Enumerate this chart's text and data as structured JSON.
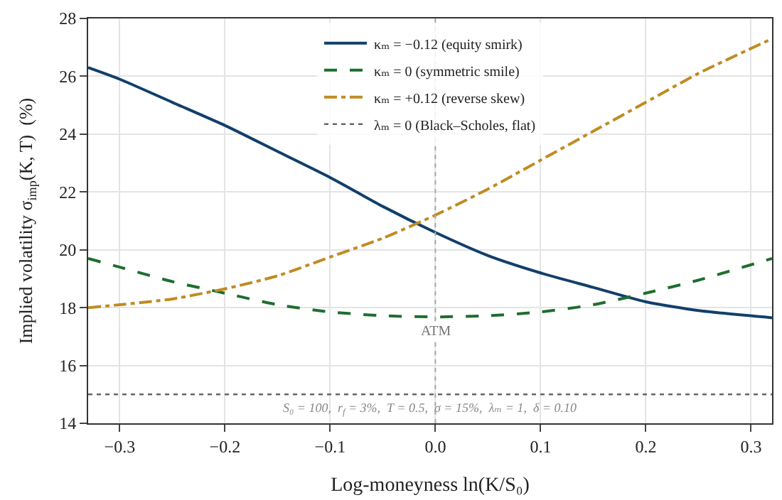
{
  "chart_data": {
    "type": "line",
    "xlabel": "Log-moneyness ln(K/S₀)",
    "ylabel": "Implied volatility σ$_{imp}$(K, T)  (%)",
    "xlim": [
      -0.33,
      0.32
    ],
    "xticks": [
      -0.3,
      -0.2,
      -0.1,
      {
        "value": 0,
        "label": "0.0"
      },
      0.1,
      0.2,
      0.3
    ],
    "ylim": [
      14,
      28
    ],
    "yticks": [
      14,
      16,
      18,
      20,
      22,
      24,
      26,
      28
    ],
    "grid": true,
    "legend": "top",
    "marker": "none",
    "x": [
      -0.33,
      -0.3,
      -0.25,
      -0.2,
      -0.15,
      -0.1,
      -0.05,
      0,
      0.05,
      0.1,
      0.15,
      0.2,
      0.25,
      0.32
    ],
    "series": [
      {
        "name": "κₘ = −0.12 (equity smirk)",
        "color": "#123f6b",
        "line_style": "solid",
        "values": [
          26.3,
          25.9,
          25.1,
          24.3,
          23.4,
          22.5,
          21.5,
          20.6,
          19.8,
          19.2,
          18.7,
          18.2,
          17.9,
          17.65
        ]
      },
      {
        "name": "κₘ = 0 (symmetric smile)",
        "color": "#1e6e2e",
        "line_style": "dashed",
        "values": [
          19.7,
          19.4,
          18.9,
          18.5,
          18.1,
          17.85,
          17.72,
          17.68,
          17.72,
          17.85,
          18.1,
          18.5,
          18.95,
          19.7
        ]
      },
      {
        "name": "κₘ = +0.12 (reverse skew)",
        "color": "#c08b22",
        "line_style": "dashdot",
        "values": [
          18.0,
          18.1,
          18.3,
          18.65,
          19.1,
          19.75,
          20.4,
          21.2,
          22.1,
          23.1,
          24.1,
          25.1,
          26.1,
          27.3
        ]
      },
      {
        "name": "λₘ = 0 (Black–Scholes, flat)",
        "color": "#666666",
        "line_style": "dotted",
        "x": [
          -0.33,
          0.32
        ],
        "values": [
          15,
          15
        ]
      }
    ],
    "ref_lines": [
      {
        "axis": "x",
        "value": 0,
        "label": "ATM",
        "color": "#aaaaaa",
        "line_style": "dotted"
      }
    ],
    "annotations": [
      "S₀ = 100,  r$_{f}$ = 3%,  T = 0.5,  σ = 15%,  λₘ = 1,  δ = 0.10"
    ]
  }
}
